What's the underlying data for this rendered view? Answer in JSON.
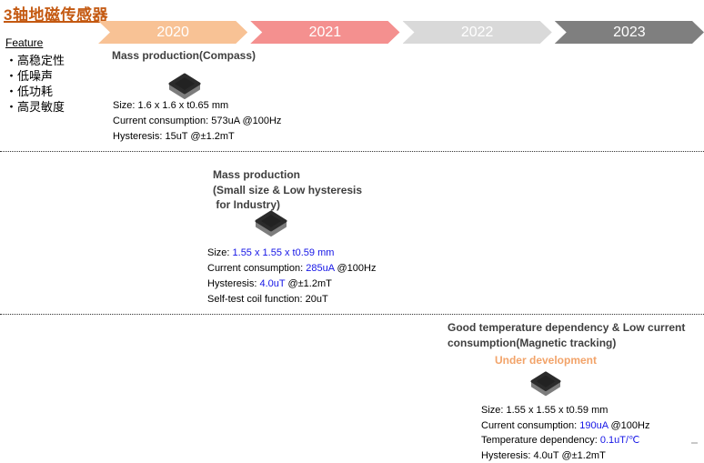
{
  "header": {
    "title": "3轴地磁传感器"
  },
  "feature": {
    "heading": "Feature",
    "items": [
      "・高稳定性",
      "・低噪声",
      "・低功耗",
      "・高灵敏度"
    ]
  },
  "timeline": [
    {
      "label": "2020",
      "color": "#F8C295"
    },
    {
      "label": "2021",
      "color": "#F4908F"
    },
    {
      "label": "2022",
      "color": "#D9D9D9"
    },
    {
      "label": "2023",
      "color": "#7F7F7F"
    }
  ],
  "colors": {
    "title_orange": "#C45911",
    "accent_blue": "#1515E6",
    "status_orange": "#F2A369",
    "section_title_gray": "#3F3F3F"
  },
  "icons": {
    "chip": "sensor-chip-icon"
  },
  "sections": [
    {
      "name": "mass-production-compass",
      "title_lines": [
        "Mass production(Compass)"
      ],
      "status": "",
      "specs": [
        [
          {
            "text": "Size: 1.6 x 1.6 x t0.65 mm",
            "blue": false
          }
        ],
        [
          {
            "text": "Current consumption: 573uA @100Hz",
            "blue": false
          }
        ],
        [
          {
            "text": "Hysteresis: 15uT @±1.2mT",
            "blue": false
          }
        ]
      ]
    },
    {
      "name": "mass-production-small-size-industry",
      "title_lines": [
        "Mass production",
        "(Small size & Low hysteresis",
        " for Industry)"
      ],
      "status": "",
      "specs": [
        [
          {
            "text": "Size: ",
            "blue": false
          },
          {
            "text": "1.55 x 1.55 x t0.59 mm",
            "blue": true
          }
        ],
        [
          {
            "text": "Current consumption: ",
            "blue": false
          },
          {
            "text": "285uA",
            "blue": true
          },
          {
            "text": " @100Hz",
            "blue": false
          }
        ],
        [
          {
            "text": "Hysteresis: ",
            "blue": false
          },
          {
            "text": "4.0uT",
            "blue": true
          },
          {
            "text": " @±1.2mT",
            "blue": false
          }
        ],
        [
          {
            "text": "Self-test coil function: 20uT",
            "blue": false
          }
        ]
      ]
    },
    {
      "name": "magnetic-tracking",
      "title_lines": [
        "Good temperature dependency & Low current",
        "consumption(Magnetic tracking)"
      ],
      "status": "Under development",
      "specs": [
        [
          {
            "text": "Size: 1.55 x 1.55 x t0.59 mm",
            "blue": false
          }
        ],
        [
          {
            "text": "Current consumption: ",
            "blue": false
          },
          {
            "text": "190uA",
            "blue": true
          },
          {
            "text": " @100Hz",
            "blue": false
          }
        ],
        [
          {
            "text": "Temperature dependency: ",
            "blue": false
          },
          {
            "text": "0.1uT/℃",
            "blue": true
          }
        ],
        [
          {
            "text": "Hysteresis: 4.0uT @±1.2mT",
            "blue": false
          }
        ]
      ]
    }
  ]
}
